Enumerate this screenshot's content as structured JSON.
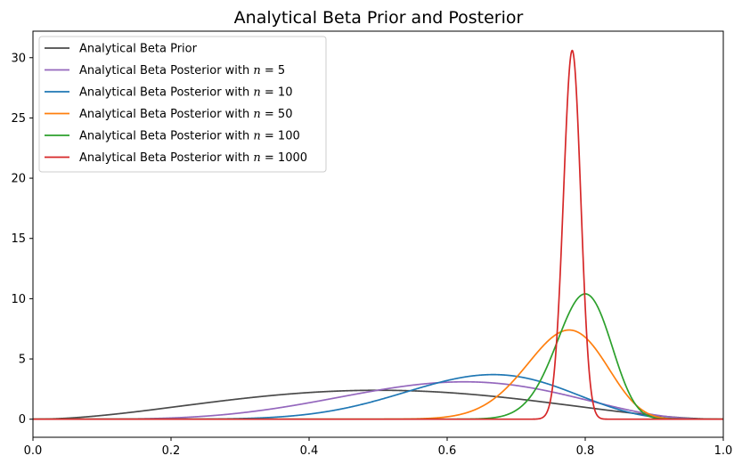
{
  "chart_data": {
    "type": "line",
    "title": "Analytical Beta Prior and Posterior",
    "xlabel": "",
    "ylabel": "",
    "xlim": [
      0.0,
      1.0
    ],
    "ylim": [
      -1.5,
      32.2
    ],
    "x_ticks": [
      0.0,
      0.2,
      0.4,
      0.6,
      0.8,
      1.0
    ],
    "x_tick_labels": [
      "0.0",
      "0.2",
      "0.4",
      "0.6",
      "0.8",
      "1.0"
    ],
    "y_ticks": [
      0,
      5,
      10,
      15,
      20,
      25,
      30
    ],
    "y_tick_labels": [
      "0",
      "5",
      "10",
      "15",
      "20",
      "25",
      "30"
    ],
    "grid": false,
    "legend_position": "top-left",
    "series": [
      {
        "name": "Analytical Beta Prior",
        "color": "#4a4a4a",
        "distribution": "beta",
        "alpha": 3,
        "beta": 3,
        "peak": {
          "x": 0.5,
          "y": 2.4
        }
      },
      {
        "name": "Analytical Beta Posterior with n = 5",
        "color": "#9467bd",
        "distribution": "beta",
        "alpha": 6,
        "beta": 4,
        "peak": {
          "x": 0.62,
          "y": 3.1
        }
      },
      {
        "name": "Analytical Beta Posterior with n = 10",
        "color": "#1f77b4",
        "distribution": "beta",
        "alpha": 11,
        "beta": 6,
        "peak": {
          "x": 0.67,
          "y": 3.7
        }
      },
      {
        "name": "Analytical Beta Posterior with n = 50",
        "color": "#ff7f0e",
        "distribution": "beta",
        "alpha": 41,
        "beta": 12.5,
        "peak": {
          "x": 0.775,
          "y": 7.4
        }
      },
      {
        "name": "Analytical Beta Posterior with n = 100",
        "color": "#2ca02c",
        "distribution": "beta",
        "alpha": 83,
        "beta": 21.5,
        "peak": {
          "x": 0.797,
          "y": 10.4
        }
      },
      {
        "name": "Analytical Beta Posterior with n = 1000",
        "color": "#d62728",
        "distribution": "beta",
        "alpha": 854,
        "beta": 240,
        "peak": {
          "x": 0.781,
          "y": 30.6
        }
      }
    ]
  }
}
